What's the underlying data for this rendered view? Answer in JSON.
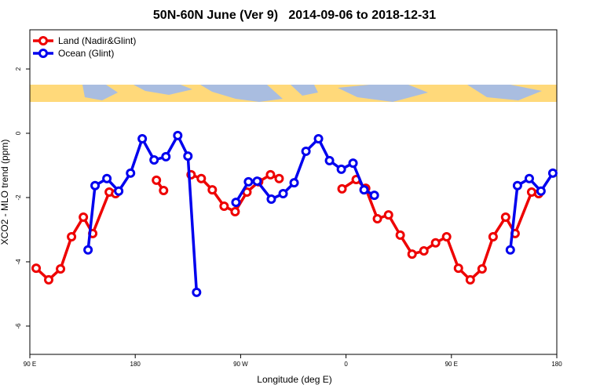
{
  "chart_data": {
    "type": "line",
    "title": "50N-60N June (Ver 9)   2014-09-06 to 2018-12-31",
    "xlabel": "Longitude (deg E)",
    "ylabel": "XCO2 - MLO trend (ppm)",
    "xlim": [
      90,
      540
    ],
    "ylim": [
      -6.88,
      3.22
    ],
    "xticks": [
      {
        "value": 90,
        "label": "90 E"
      },
      180,
      {
        "value": 270,
        "label": "90 W"
      },
      {
        "value": 360,
        "label": "0"
      },
      {
        "value": 450,
        "label": "90 E"
      },
      {
        "value": 540,
        "label": "180"
      }
    ],
    "yticks": [
      -6,
      -4,
      -2,
      0,
      2
    ],
    "legend": "top-left",
    "series": [
      {
        "name": "Land (Nadir&Glint)",
        "color": "#ee0000",
        "x": [
          95.4,
          106.1,
          116.2,
          125.6,
          135.7,
          143.7,
          157.8,
          163.2,
          null,
          198.1,
          204.2,
          null,
          227.7,
          236.4,
          245.8,
          255.9,
          265.3,
          275.4,
          285.4,
          295.5,
          302.9,
          null,
          356.6,
          368.7,
          376.8,
          386.8,
          396.3,
          406.3,
          416.4,
          426.5,
          436.5,
          445.9,
          456.0,
          466.1,
          476.2,
          485.6,
          496.3,
          504.4,
          518.5,
          524.5
        ],
        "values": [
          -4.2,
          -4.56,
          -4.22,
          -3.22,
          -2.61,
          -3.12,
          -1.83,
          -1.88,
          null,
          -1.46,
          -1.78,
          null,
          -1.29,
          -1.41,
          -1.76,
          -2.27,
          -2.44,
          -1.83,
          -1.51,
          -1.29,
          -1.41,
          null,
          -1.73,
          -1.44,
          -1.71,
          -2.66,
          -2.54,
          -3.17,
          -3.76,
          -3.66,
          -3.41,
          -3.22,
          -4.2,
          -4.56,
          -4.22,
          -3.22,
          -2.61,
          -3.12,
          -1.83,
          -1.88
        ]
      },
      {
        "name": "Ocean (Glint)",
        "color": "#0000ee",
        "x": [
          139.7,
          145.7,
          155.8,
          165.9,
          176.0,
          186.0,
          196.1,
          206.2,
          216.3,
          225.0,
          232.4,
          null,
          266.0,
          276.7,
          284.1,
          296.2,
          306.3,
          315.7,
          325.8,
          336.5,
          345.9,
          356.0,
          366.0,
          375.4,
          384.2,
          null,
          500.3,
          506.4,
          516.5,
          526.5,
          536.6
        ],
        "values": [
          -3.63,
          -1.63,
          -1.41,
          -1.8,
          -1.24,
          -0.17,
          -0.83,
          -0.73,
          -0.07,
          -0.71,
          -4.95,
          null,
          -2.15,
          -1.51,
          -1.49,
          -2.05,
          -1.88,
          -1.54,
          -0.56,
          -0.17,
          -0.85,
          -1.12,
          -0.93,
          -1.76,
          -1.93,
          null,
          -3.63,
          -1.63,
          -1.41,
          -1.8,
          -1.24
        ]
      }
    ]
  }
}
